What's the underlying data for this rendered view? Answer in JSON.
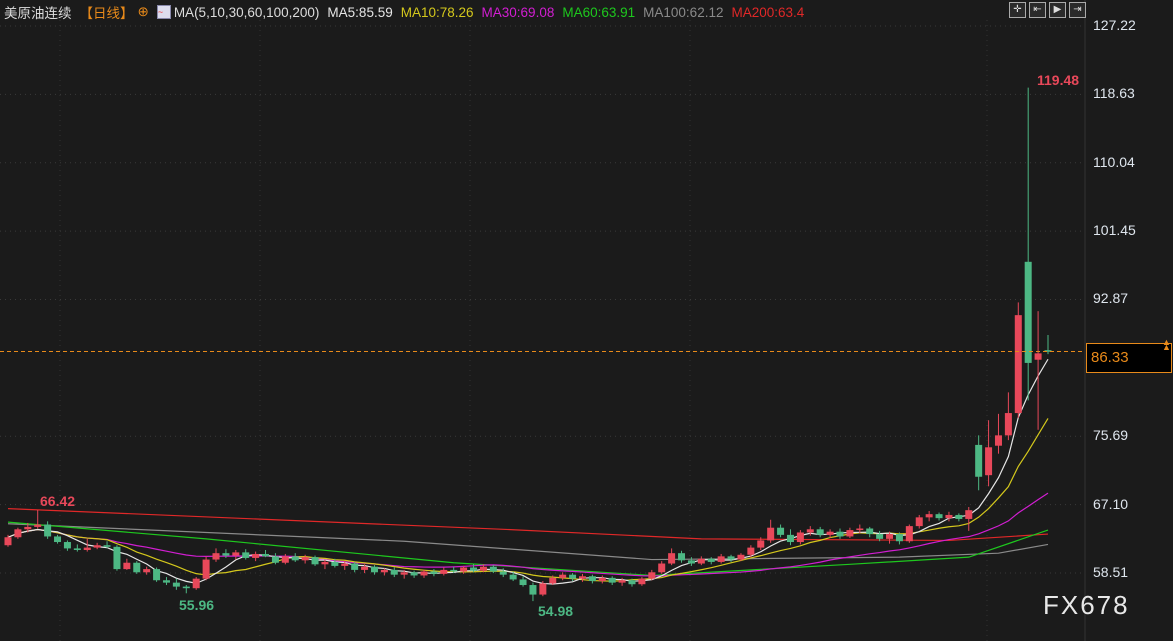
{
  "header": {
    "symbol": "美原油连续",
    "period": "【日线】",
    "ma_params": "MA(5,10,30,60,100,200)",
    "ma5": "MA5:85.59",
    "ma10": "MA10:78.26",
    "ma30": "MA30:69.08",
    "ma60": "MA60:63.91",
    "ma100": "MA100:62.12",
    "ma200": "MA200:63.4"
  },
  "toolbar": {
    "icons": [
      "crosshair-icon",
      "zoom-range-icon",
      "play-icon",
      "exit-icon"
    ]
  },
  "y_axis": {
    "ticks": [
      "127.22",
      "118.63",
      "110.04",
      "101.45",
      "92.87",
      "75.69",
      "67.10",
      "58.51"
    ]
  },
  "last_price": "86.33",
  "annotations": {
    "high_left": "66.42",
    "low_1": "55.96",
    "low_2": "54.98",
    "peak": "119.48"
  },
  "logo": "FX678",
  "colors": {
    "up": "#e8485a",
    "down": "#4db884",
    "ma5": "#e6e6e6",
    "ma10": "#d4c81c",
    "ma30": "#d21ed2",
    "ma60": "#1ec81e",
    "ma100": "#8a8a8a",
    "ma200": "#e02828",
    "last": "#e88a1a"
  },
  "chart_data": {
    "type": "candlestick",
    "ylim": [
      58.51,
      127.22
    ],
    "candles": [
      [
        62.0,
        63.3,
        61.8,
        63.0
      ],
      [
        63.0,
        64.2,
        62.8,
        64.0
      ],
      [
        64.0,
        64.8,
        63.6,
        64.3
      ],
      [
        64.3,
        66.42,
        64.1,
        64.6
      ],
      [
        64.6,
        65.0,
        62.8,
        63.1
      ],
      [
        63.1,
        63.3,
        62.2,
        62.4
      ],
      [
        62.4,
        62.6,
        61.3,
        61.6
      ],
      [
        61.6,
        62.1,
        61.2,
        61.4
      ],
      [
        61.4,
        62.8,
        61.2,
        61.7
      ],
      [
        61.7,
        62.3,
        61.5,
        62.0
      ],
      [
        62.0,
        62.5,
        61.6,
        61.8
      ],
      [
        61.8,
        62.0,
        58.8,
        59.0
      ],
      [
        59.0,
        60.3,
        58.9,
        59.8
      ],
      [
        59.8,
        60.0,
        58.4,
        58.6
      ],
      [
        58.6,
        59.3,
        58.3,
        59.0
      ],
      [
        59.0,
        59.2,
        57.4,
        57.6
      ],
      [
        57.6,
        58.0,
        57.0,
        57.3
      ],
      [
        57.3,
        57.8,
        56.4,
        56.8
      ],
      [
        56.8,
        57.0,
        55.96,
        56.6
      ],
      [
        56.6,
        58.0,
        56.4,
        57.8
      ],
      [
        57.8,
        60.6,
        57.6,
        60.2
      ],
      [
        60.2,
        61.6,
        59.9,
        61.0
      ],
      [
        61.0,
        61.5,
        60.4,
        60.7
      ],
      [
        60.7,
        61.4,
        60.2,
        61.1
      ],
      [
        61.1,
        61.5,
        60.2,
        60.4
      ],
      [
        60.4,
        61.2,
        60.0,
        60.9
      ],
      [
        60.9,
        61.4,
        60.5,
        60.6
      ],
      [
        60.6,
        61.0,
        59.6,
        59.8
      ],
      [
        59.8,
        60.9,
        59.6,
        60.6
      ],
      [
        60.6,
        61.0,
        59.9,
        60.1
      ],
      [
        60.1,
        60.8,
        59.7,
        60.5
      ],
      [
        60.5,
        60.7,
        59.4,
        59.6
      ],
      [
        59.6,
        60.2,
        59.0,
        59.9
      ],
      [
        59.9,
        60.3,
        59.2,
        59.4
      ],
      [
        59.4,
        60.0,
        58.9,
        59.7
      ],
      [
        59.7,
        59.9,
        58.6,
        58.9
      ],
      [
        58.9,
        59.6,
        58.5,
        59.3
      ],
      [
        59.3,
        59.5,
        58.3,
        58.6
      ],
      [
        58.6,
        59.1,
        58.2,
        58.9
      ],
      [
        58.9,
        59.2,
        58.0,
        58.3
      ],
      [
        58.3,
        58.9,
        57.8,
        58.6
      ],
      [
        58.6,
        58.8,
        57.9,
        58.2
      ],
      [
        58.2,
        58.9,
        57.9,
        58.7
      ],
      [
        58.7,
        59.0,
        58.1,
        58.4
      ],
      [
        58.4,
        59.2,
        58.2,
        58.9
      ],
      [
        58.9,
        59.3,
        58.5,
        58.7
      ],
      [
        58.7,
        59.4,
        58.4,
        59.2
      ],
      [
        59.2,
        59.6,
        58.6,
        58.8
      ],
      [
        58.8,
        59.6,
        58.6,
        59.3
      ],
      [
        59.3,
        59.5,
        58.5,
        58.7
      ],
      [
        58.7,
        59.1,
        58.0,
        58.3
      ],
      [
        58.3,
        58.7,
        57.5,
        57.7
      ],
      [
        57.7,
        58.1,
        56.8,
        57.0
      ],
      [
        57.0,
        57.3,
        54.98,
        55.8
      ],
      [
        55.8,
        57.5,
        55.6,
        57.2
      ],
      [
        57.2,
        58.2,
        57.0,
        57.9
      ],
      [
        57.9,
        58.6,
        57.6,
        58.3
      ],
      [
        58.3,
        58.5,
        57.5,
        57.8
      ],
      [
        57.8,
        58.4,
        57.4,
        58.1
      ],
      [
        58.1,
        58.3,
        57.2,
        57.5
      ],
      [
        57.5,
        58.2,
        57.2,
        57.9
      ],
      [
        57.9,
        58.1,
        57.0,
        57.3
      ],
      [
        57.3,
        57.9,
        56.9,
        57.6
      ],
      [
        57.6,
        57.8,
        56.8,
        57.1
      ],
      [
        57.1,
        58.0,
        56.9,
        57.8
      ],
      [
        57.8,
        58.9,
        57.6,
        58.6
      ],
      [
        58.6,
        60.0,
        58.4,
        59.7
      ],
      [
        59.7,
        61.6,
        59.5,
        61.0
      ],
      [
        61.0,
        61.3,
        59.8,
        60.1
      ],
      [
        60.1,
        60.5,
        59.4,
        59.7
      ],
      [
        59.7,
        60.6,
        59.5,
        60.3
      ],
      [
        60.3,
        60.5,
        59.6,
        59.9
      ],
      [
        59.9,
        60.9,
        59.7,
        60.6
      ],
      [
        60.6,
        60.8,
        59.9,
        60.2
      ],
      [
        60.2,
        61.0,
        60.0,
        60.8
      ],
      [
        60.8,
        62.0,
        60.5,
        61.7
      ],
      [
        61.7,
        63.0,
        61.4,
        62.6
      ],
      [
        62.6,
        65.2,
        62.3,
        64.2
      ],
      [
        64.2,
        64.6,
        63.0,
        63.3
      ],
      [
        63.3,
        64.0,
        62.0,
        62.4
      ],
      [
        62.4,
        63.9,
        62.1,
        63.6
      ],
      [
        63.6,
        64.4,
        63.2,
        64.0
      ],
      [
        64.0,
        64.3,
        63.0,
        63.3
      ],
      [
        63.3,
        64.0,
        62.9,
        63.7
      ],
      [
        63.7,
        64.1,
        62.8,
        63.1
      ],
      [
        63.1,
        64.2,
        62.9,
        63.9
      ],
      [
        63.9,
        64.6,
        63.5,
        64.1
      ],
      [
        64.1,
        64.3,
        63.0,
        63.4
      ],
      [
        63.4,
        63.8,
        62.5,
        62.8
      ],
      [
        62.8,
        63.7,
        62.2,
        63.4
      ],
      [
        63.4,
        63.6,
        62.1,
        62.5
      ],
      [
        62.5,
        64.6,
        62.3,
        64.4
      ],
      [
        64.4,
        65.8,
        64.1,
        65.5
      ],
      [
        65.5,
        66.3,
        65.0,
        65.9
      ],
      [
        65.9,
        66.1,
        65.1,
        65.4
      ],
      [
        65.4,
        66.2,
        65.0,
        65.8
      ],
      [
        65.8,
        66.0,
        65.0,
        65.3
      ],
      [
        65.3,
        66.8,
        63.8,
        66.4
      ],
      [
        74.6,
        75.8,
        68.9,
        70.6
      ],
      [
        70.8,
        77.7,
        69.4,
        74.3
      ],
      [
        74.5,
        78.5,
        73.5,
        75.8
      ],
      [
        75.8,
        81.2,
        75.2,
        78.6
      ],
      [
        78.6,
        92.5,
        78.0,
        90.9
      ],
      [
        97.6,
        119.48,
        80.2,
        84.9
      ],
      [
        85.3,
        91.4,
        76.5,
        86.1
      ],
      [
        86.5,
        88.4,
        86.0,
        86.3
      ]
    ],
    "ma60": [
      [
        0,
        64.9
      ],
      [
        20,
        62.8
      ],
      [
        45,
        59.8
      ],
      [
        65,
        58.2
      ],
      [
        85,
        59.6
      ],
      [
        97,
        60.5
      ],
      [
        105,
        63.9
      ]
    ],
    "ma100": [
      [
        0,
        64.7
      ],
      [
        40,
        62.5
      ],
      [
        65,
        60.2
      ],
      [
        90,
        60.5
      ],
      [
        100,
        61.0
      ],
      [
        105,
        62.1
      ]
    ],
    "ma200": [
      [
        0,
        66.6
      ],
      [
        50,
        64.0
      ],
      [
        70,
        62.8
      ],
      [
        95,
        62.6
      ],
      [
        105,
        63.4
      ]
    ]
  }
}
